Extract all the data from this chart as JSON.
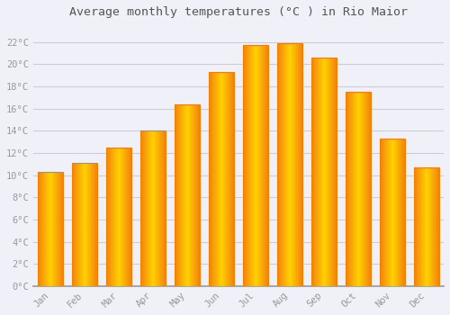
{
  "title": "Average monthly temperatures (°C ) in Rio Maior",
  "months": [
    "Jan",
    "Feb",
    "Mar",
    "Apr",
    "May",
    "Jun",
    "Jul",
    "Aug",
    "Sep",
    "Oct",
    "Nov",
    "Dec"
  ],
  "values": [
    10.3,
    11.1,
    12.5,
    14.0,
    16.4,
    19.3,
    21.7,
    21.9,
    20.6,
    17.5,
    13.3,
    10.7
  ],
  "bar_color_center": "#FFB300",
  "bar_color_edge": "#F08000",
  "background_color": "#F0F0F8",
  "grid_color": "#CCCCDD",
  "tick_color": "#999999",
  "title_color": "#555555",
  "ytick_labels": [
    "0°C",
    "2°C",
    "4°C",
    "6°C",
    "8°C",
    "10°C",
    "12°C",
    "14°C",
    "16°C",
    "18°C",
    "20°C",
    "22°C"
  ],
  "ylim": [
    0,
    23.5
  ],
  "yticks": [
    0,
    2,
    4,
    6,
    8,
    10,
    12,
    14,
    16,
    18,
    20,
    22
  ],
  "bar_width": 0.75
}
